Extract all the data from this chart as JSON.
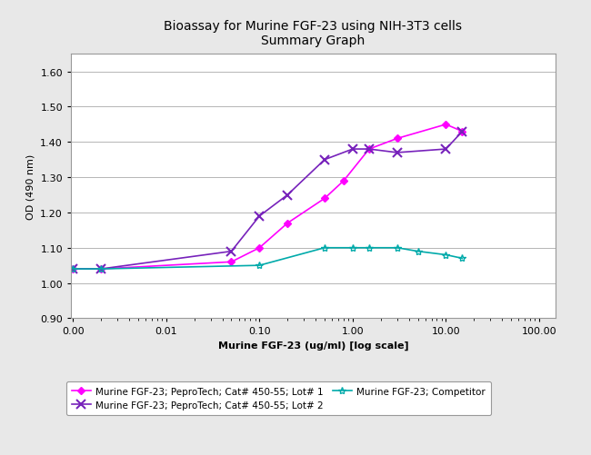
{
  "title_line1": "Bioassay for Murine FGF-23 using NIH-3T3 cells",
  "title_line2": "Summary Graph",
  "xlabel": "Murine FGF-23 (ug/ml) [log scale]",
  "ylabel": "OD (490 nm)",
  "ylim": [
    0.9,
    1.65
  ],
  "yticks": [
    0.9,
    1.0,
    1.1,
    1.2,
    1.3,
    1.4,
    1.5,
    1.6
  ],
  "xticks_log": [
    0.001,
    0.01,
    0.1,
    1.0,
    10.0,
    100.0
  ],
  "xtick_labels": [
    "0.00",
    "0.01",
    "0.10",
    "1.00",
    "10.00",
    "100.00"
  ],
  "lot1": {
    "x": [
      0.001,
      0.002,
      0.05,
      0.1,
      0.2,
      0.5,
      0.8,
      1.5,
      3.0,
      10.0,
      15.0
    ],
    "y": [
      1.04,
      1.04,
      1.06,
      1.1,
      1.17,
      1.24,
      1.29,
      1.38,
      1.41,
      1.45,
      1.43
    ],
    "color": "#ff00ff",
    "label": "Murine FGF-23; PeproTech; Cat# 450-55; Lot# 1",
    "marker": "D",
    "markersize": 4
  },
  "lot2": {
    "x": [
      0.001,
      0.002,
      0.05,
      0.1,
      0.2,
      0.5,
      1.0,
      1.5,
      3.0,
      10.0,
      15.0
    ],
    "y": [
      1.04,
      1.04,
      1.09,
      1.19,
      1.25,
      1.35,
      1.38,
      1.38,
      1.37,
      1.38,
      1.43
    ],
    "color": "#7722bb",
    "label": "Murine FGF-23; PeproTech; Cat# 450-55; Lot# 2",
    "marker": "x",
    "markersize": 7
  },
  "competitor": {
    "x": [
      0.001,
      0.002,
      0.1,
      0.5,
      1.0,
      1.5,
      3.0,
      5.0,
      10.0,
      15.0
    ],
    "y": [
      1.04,
      1.04,
      1.05,
      1.1,
      1.1,
      1.1,
      1.1,
      1.09,
      1.08,
      1.07
    ],
    "color": "#00aaaa",
    "label": "Murine FGF-23; Competitor",
    "marker": "*",
    "markersize": 6
  },
  "fig_bg_color": "#e8e8e8",
  "plot_bg_color": "#ffffff",
  "outer_box_color": "#cccccc",
  "grid_color": "#aaaaaa",
  "title_fontsize": 10,
  "axis_label_fontsize": 8,
  "tick_fontsize": 8,
  "legend_fontsize": 7.5
}
